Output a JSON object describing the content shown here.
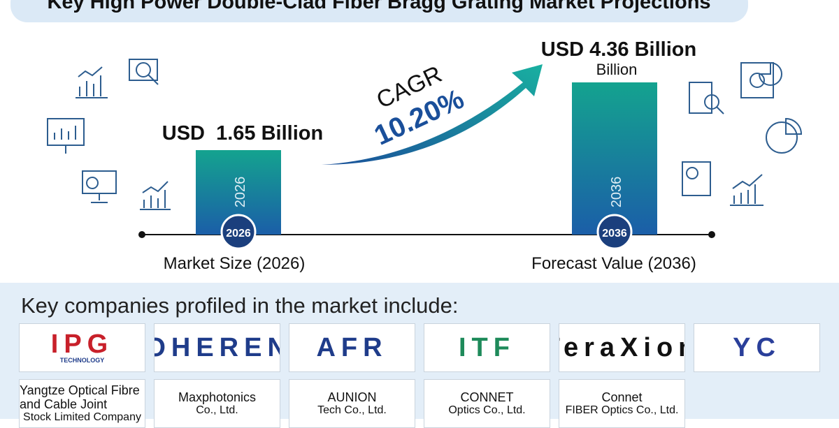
{
  "header": {
    "title": "Key High Power Double-Clad Fiber Bragg Grating Market Projections"
  },
  "projection": {
    "current": {
      "value_text": "USD  1.65 Billion",
      "bar_label": "2026",
      "badge": "2026",
      "caption": "Market Size (2026)"
    },
    "cagr": {
      "label": "CAGR",
      "value": "10.20%"
    },
    "forecast": {
      "value_text": "USD 4.36 Billion",
      "unit": "Billion",
      "bar_label": "2036",
      "badge": "2036",
      "caption": "Forecast Value (2036)"
    }
  },
  "companies": {
    "heading": "Key companies profiled in the market include:",
    "list": [
      {
        "lines": [
          "IPG",
          "TECHNOLOGY"
        ]
      },
      {
        "lines": [
          "COHERENT"
        ]
      },
      {
        "lines": [
          "AFR"
        ]
      },
      {
        "lines": [
          "ITF"
        ]
      },
      {
        "lines": [
          "TeraXion"
        ]
      },
      {
        "lines": [
          "YC"
        ]
      },
      {
        "lines": [
          "Yangtze Optical Fibre and Cable Joint",
          "Stock Limited Company"
        ]
      },
      {
        "lines": [
          "Maxphotonics",
          "Co., Ltd."
        ]
      },
      {
        "lines": [
          "AUNION",
          "Tech Co., Ltd."
        ]
      },
      {
        "lines": [
          "CONNET",
          "Optics Co., Ltd."
        ]
      },
      {
        "lines": [
          "Connet",
          "FIBER Optics Co., Ltd."
        ]
      }
    ]
  }
}
